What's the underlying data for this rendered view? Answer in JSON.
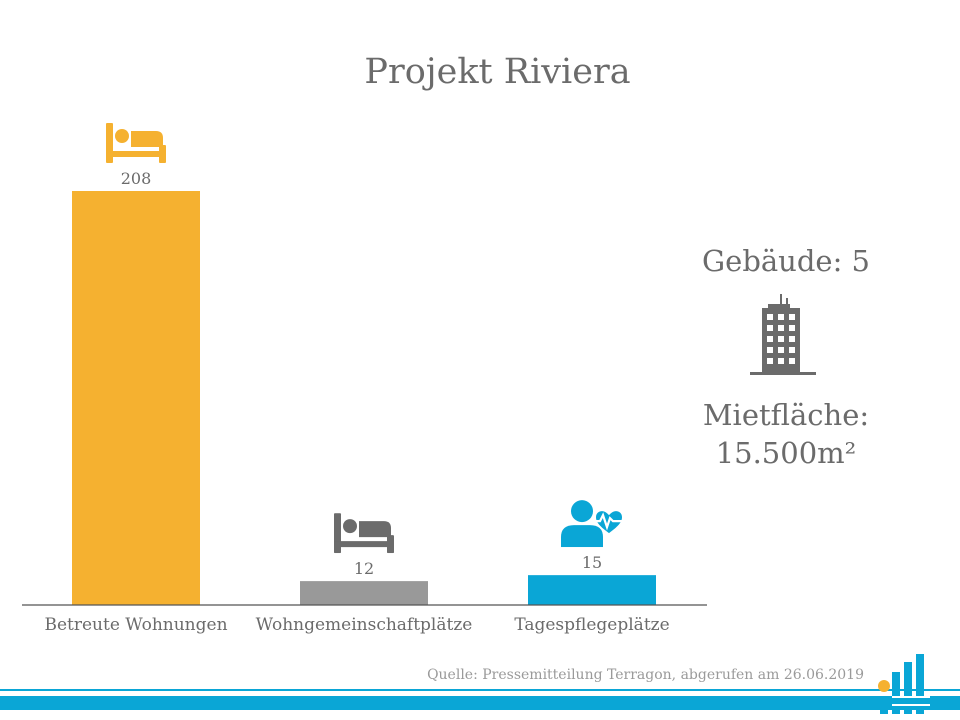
{
  "chart_data": {
    "type": "bar",
    "title": "Projekt Riviera",
    "categories": [
      "Betreute Wohnungen",
      "Wohngemeinschaftplätze",
      "Tagespflegeplätze"
    ],
    "values": [
      208,
      12,
      15
    ],
    "colors": [
      "#f5b130",
      "#999999",
      "#0aa6d6"
    ],
    "icons": [
      "bed-icon",
      "bed-icon",
      "caregiver-heartbeat-icon"
    ],
    "icon_colors": [
      "#f5b130",
      "#6b6b6b",
      "#0aa6d6"
    ],
    "ylim": [
      0,
      208
    ],
    "grid": false,
    "legend": "none"
  },
  "stats": {
    "buildings": "Gebäude: 5",
    "area_label": "Mietfläche:",
    "area_value": "15.500m²"
  },
  "source": "Quelle: Pressemitteilung Terragon, abgerufen am 26.06.2019",
  "colors": {
    "accent": "#0aa6d6",
    "text": "#6b6b6b"
  }
}
